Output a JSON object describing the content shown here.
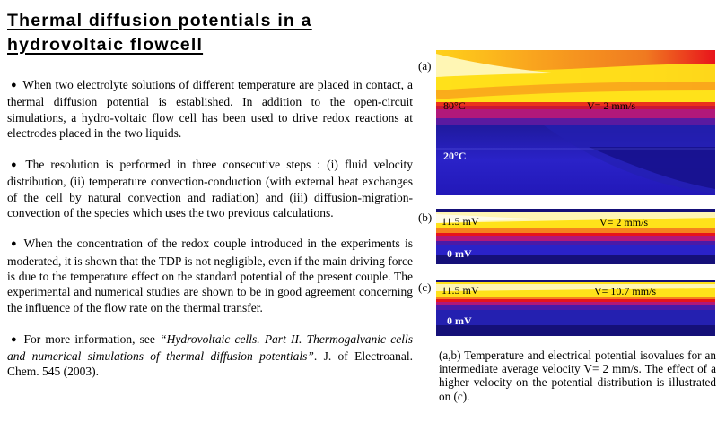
{
  "title": {
    "line1": "Thermal diffusion potentials in a ",
    "line2": "hydrovoltaic flowcell"
  },
  "paragraphs": {
    "p1": "When two electrolyte solutions of different temperature are placed in contact, a thermal diffusion potential is established. In addition to the open-circuit simulations, a hydro-voltaic flow cell has been used to drive redox reactions at electrodes placed in the two liquids.",
    "p2": "The resolution is performed in three consecutive steps : (i) fluid velocity distribution, (ii) temperature convection-conduction (with external heat exchanges of the cell by natural convection and radiation) and (iii) diffusion-migration-convection of the species which uses the two previous calculations.",
    "p3": "When the concentration of the redox couple introduced in the experiments is moderated, it is shown that the TDP is not negligible, even if the main driving force is due to the temperature effect on the standard potential of the present couple. The experimental and numerical studies are shown to be in good agreement concerning the influence of the flow rate on the thermal transfer.",
    "p4_lead": "For more information, see ",
    "p4_ref": "“Hydrovoltaic cells. Part II. Thermogalvanic cells and numerical simulations of thermal diffusion potentials”",
    "p4_tail": ". J. of Electroanal. Chem. 545 (2003)."
  },
  "bullet_glyph": "●",
  "figure": {
    "a": {
      "tag": "(a)",
      "hot": "80°C",
      "cold": "20°C",
      "velocity": "V= 2 mm/s"
    },
    "b": {
      "tag": "(b)",
      "top": "11.5 mV",
      "bottom": "0 mV",
      "velocity": "V= 2 mm/s"
    },
    "c": {
      "tag": "(c)",
      "top": "11.5 mV",
      "bottom": "0 mV",
      "velocity": "V= 10.7 mm/s"
    },
    "caption": "(a,b) Temperature and electrical potential isovalues for an intermediate average velocity V= 2 mm/s. The effect of a higher velocity on the potential distribution is illustrated on (c)."
  },
  "colors": {
    "hot_red": "#e8141c",
    "orange": "#f5821e",
    "yellow": "#ffe21a",
    "pale_yellow": "#fff6b4",
    "magenta": "#b2187a",
    "blue": "#2a22c8",
    "navy": "#151078"
  }
}
